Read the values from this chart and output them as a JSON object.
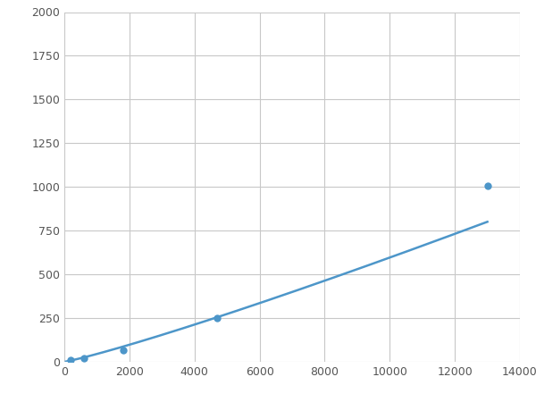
{
  "x": [
    200,
    600,
    1800,
    4700,
    13000
  ],
  "y": [
    10,
    20,
    65,
    250,
    1005
  ],
  "line_color": "#4d96c9",
  "marker_color": "#4d96c9",
  "marker_size": 6,
  "line_width": 1.8,
  "xlim": [
    0,
    14000
  ],
  "ylim": [
    0,
    2000
  ],
  "xticks": [
    0,
    2000,
    4000,
    6000,
    8000,
    10000,
    12000,
    14000
  ],
  "yticks": [
    0,
    250,
    500,
    750,
    1000,
    1250,
    1500,
    1750,
    2000
  ],
  "background_color": "#ffffff",
  "grid_color": "#c8c8c8",
  "figwidth": 6.0,
  "figheight": 4.5,
  "dpi": 100
}
